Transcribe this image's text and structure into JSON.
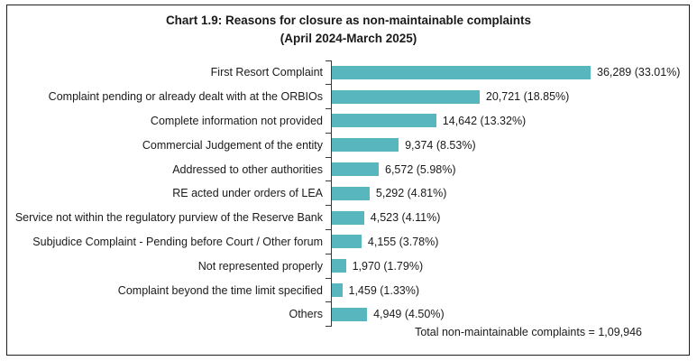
{
  "title": {
    "line1": "Chart 1.9: Reasons for closure as non-maintainable complaints",
    "line2": "(April 2024-March 2025)"
  },
  "footer": {
    "total_text": "Total non-maintainable complaints = 1,09,946"
  },
  "colors": {
    "bar": "#58b6bf",
    "axis": "#3a3a3a",
    "border": "#1f1f1f",
    "text": "#1a1a1a"
  },
  "chart_data": {
    "type": "bar",
    "orientation": "horizontal",
    "title": "Chart 1.9: Reasons for closure as non-maintainable complaints (April 2024-March 2025)",
    "categories": [
      "First Resort Complaint",
      "Complaint pending or already dealt with at the ORBIOs",
      "Complete information not provided",
      "Commercial Judgement of the entity",
      "Addressed to other authorities",
      "RE acted under orders of LEA",
      "Service not within the regulatory purview of the Reserve Bank",
      "Subjudice Complaint -  Pending before Court / Other forum",
      "Not represented properly",
      "Complaint beyond the time limit specified",
      "Others"
    ],
    "values": [
      36289,
      20721,
      14642,
      9374,
      6572,
      5292,
      4523,
      4155,
      1970,
      1459,
      4949
    ],
    "percentages": [
      33.01,
      18.85,
      13.32,
      8.53,
      5.98,
      4.81,
      4.11,
      3.78,
      1.79,
      1.33,
      4.5
    ],
    "value_labels": [
      "36,289 (33.01%)",
      "20,721 (18.85%)",
      "14,642 (13.32%)",
      "9,374 (8.53%)",
      "6,572 (5.98%)",
      "5,292 (4.81%)",
      "4,523 (4.11%)",
      "4,155 (3.78%)",
      "1,970 (1.79%)",
      "1,459 (1.33%)",
      "4,949 (4.50%)"
    ],
    "total": "1,09,946",
    "xlabel": "",
    "ylabel": "",
    "xlim": [
      0,
      40000
    ],
    "grid": false,
    "legend": false
  }
}
